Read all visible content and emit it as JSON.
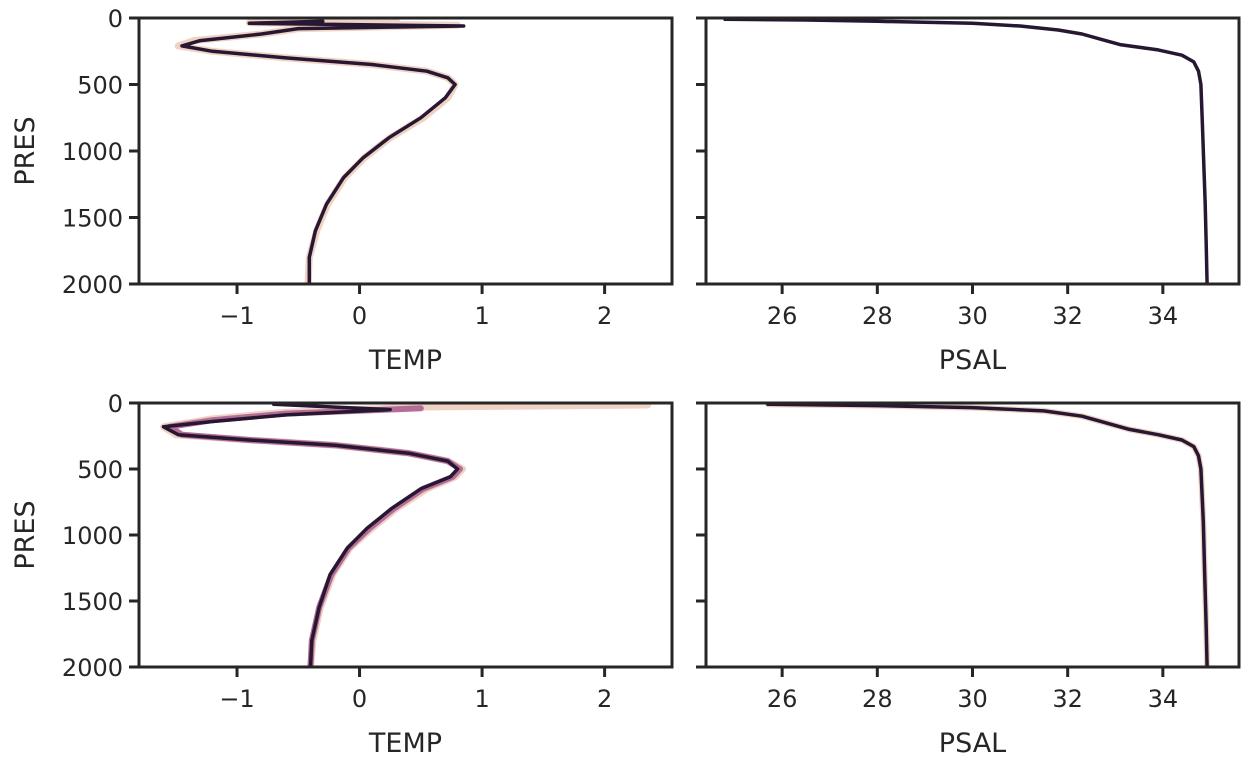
{
  "chart_data": [
    {
      "type": "line",
      "xlabel": "TEMP",
      "ylabel": "PRES",
      "xlim": [
        -1.8,
        2.55
      ],
      "ylim": [
        2000,
        0
      ],
      "xticks": [
        "−1",
        "0",
        "1",
        "2"
      ],
      "xtick_values": [
        -1,
        0,
        1,
        2
      ],
      "yticks": [
        "0",
        "500",
        "1000",
        "1500",
        "2000"
      ],
      "ytick_values": [
        0,
        500,
        1000,
        1500,
        2000
      ],
      "grid": false,
      "series": [
        {
          "color": "#f0d2c4",
          "width": 7,
          "x": [
            0.3,
            -0.9,
            0.8,
            -0.5,
            -0.8,
            -1.35,
            -1.48,
            -1.2,
            -0.6,
            0.1,
            0.55,
            0.72,
            0.78,
            0.72,
            0.52,
            0.25,
            0.04,
            -0.12,
            -0.26,
            -0.35,
            -0.41,
            -0.42
          ],
          "y": [
            20,
            35,
            55,
            80,
            120,
            170,
            210,
            250,
            300,
            350,
            400,
            450,
            500,
            600,
            750,
            900,
            1050,
            1200,
            1400,
            1600,
            1800,
            2000
          ]
        },
        {
          "color": "#261733",
          "width": 3.5,
          "x": [
            -0.3,
            -0.9,
            0.85,
            -0.5,
            -0.8,
            -1.3,
            -1.45,
            -1.2,
            -0.6,
            0.1,
            0.55,
            0.72,
            0.78,
            0.7,
            0.5,
            0.24,
            0.03,
            -0.13,
            -0.27,
            -0.36,
            -0.41,
            -0.41
          ],
          "y": [
            25,
            40,
            60,
            80,
            120,
            170,
            210,
            250,
            300,
            350,
            400,
            450,
            500,
            600,
            750,
            900,
            1050,
            1200,
            1400,
            1600,
            1800,
            2000
          ]
        }
      ]
    },
    {
      "type": "line",
      "xlabel": "PSAL",
      "ylabel": "",
      "xlim": [
        24.4,
        35.6
      ],
      "ylim": [
        2000,
        0
      ],
      "xticks": [
        "26",
        "28",
        "30",
        "32",
        "34"
      ],
      "xtick_values": [
        26,
        28,
        30,
        32,
        34
      ],
      "yticks": [],
      "grid": false,
      "series": [
        {
          "color": "#261733",
          "width": 3.5,
          "x": [
            24.8,
            26.5,
            28.0,
            30.0,
            31.0,
            31.8,
            32.3,
            32.7,
            33.1,
            33.9,
            34.4,
            34.65,
            34.75,
            34.8,
            34.83,
            34.86,
            34.89,
            34.91,
            34.93
          ],
          "y": [
            10,
            15,
            25,
            40,
            60,
            90,
            120,
            160,
            200,
            240,
            280,
            330,
            400,
            500,
            800,
            1100,
            1400,
            1700,
            2000
          ]
        }
      ]
    },
    {
      "type": "line",
      "xlabel": "TEMP",
      "ylabel": "PRES",
      "xlim": [
        -1.8,
        2.55
      ],
      "ylim": [
        2000,
        0
      ],
      "xticks": [
        "−1",
        "0",
        "1",
        "2"
      ],
      "xtick_values": [
        -1,
        0,
        1,
        2
      ],
      "yticks": [
        "0",
        "500",
        "1000",
        "1500",
        "2000"
      ],
      "ytick_values": [
        0,
        500,
        1000,
        1500,
        2000
      ],
      "grid": false,
      "series": [
        {
          "color": "#f0d2c4",
          "width": 7,
          "x": [
            2.35,
            0.5,
            -0.6,
            -1.2,
            -1.6,
            -1.5,
            -0.9,
            -0.2,
            0.4,
            0.72,
            0.84,
            0.78,
            0.55,
            0.3,
            0.1,
            -0.08,
            -0.22,
            -0.32,
            -0.38,
            -0.4
          ],
          "y": [
            15,
            30,
            70,
            120,
            180,
            240,
            280,
            320,
            380,
            440,
            500,
            560,
            650,
            800,
            950,
            1100,
            1300,
            1550,
            1800,
            2000
          ]
        },
        {
          "color": "#b46d97",
          "width": 6,
          "x": [
            0.5,
            0.1,
            -0.6,
            -1.2,
            -1.55,
            -1.45,
            -0.9,
            -0.2,
            0.4,
            0.72,
            0.82,
            0.76,
            0.52,
            0.28,
            0.08,
            -0.09,
            -0.23,
            -0.33,
            -0.39,
            -0.4
          ],
          "y": [
            40,
            55,
            80,
            130,
            180,
            240,
            280,
            320,
            380,
            440,
            500,
            560,
            650,
            800,
            950,
            1100,
            1300,
            1550,
            1800,
            2000
          ]
        },
        {
          "color": "#261733",
          "width": 3.5,
          "x": [
            -0.7,
            0.25,
            -0.6,
            -1.2,
            -1.6,
            -1.48,
            -0.9,
            -0.2,
            0.4,
            0.72,
            0.8,
            0.74,
            0.5,
            0.26,
            0.06,
            -0.1,
            -0.24,
            -0.33,
            -0.39,
            -0.4
          ],
          "y": [
            10,
            50,
            90,
            140,
            180,
            240,
            280,
            320,
            380,
            440,
            500,
            560,
            650,
            800,
            950,
            1100,
            1300,
            1550,
            1800,
            2000
          ]
        }
      ]
    },
    {
      "type": "line",
      "xlabel": "PSAL",
      "ylabel": "",
      "xlim": [
        24.4,
        35.6
      ],
      "ylim": [
        2000,
        0
      ],
      "xticks": [
        "26",
        "28",
        "30",
        "32",
        "34"
      ],
      "xtick_values": [
        26,
        28,
        30,
        32,
        34
      ],
      "yticks": [],
      "grid": false,
      "series": [
        {
          "color": "#f0d2c4",
          "width": 6,
          "x": [
            25.7,
            28.0,
            30.0,
            31.5,
            32.3,
            32.8,
            33.3,
            33.9,
            34.4,
            34.65,
            34.75,
            34.8,
            34.85,
            34.88,
            34.91,
            34.93
          ],
          "y": [
            10,
            20,
            35,
            60,
            100,
            150,
            200,
            240,
            280,
            330,
            400,
            500,
            900,
            1300,
            1700,
            2000
          ]
        },
        {
          "color": "#261733",
          "width": 3.5,
          "x": [
            25.7,
            28.0,
            30.0,
            31.5,
            32.3,
            32.8,
            33.3,
            33.9,
            34.4,
            34.65,
            34.75,
            34.8,
            34.85,
            34.88,
            34.91,
            34.93
          ],
          "y": [
            10,
            20,
            35,
            60,
            100,
            150,
            200,
            240,
            280,
            330,
            400,
            500,
            900,
            1300,
            1700,
            2000
          ]
        }
      ]
    }
  ]
}
